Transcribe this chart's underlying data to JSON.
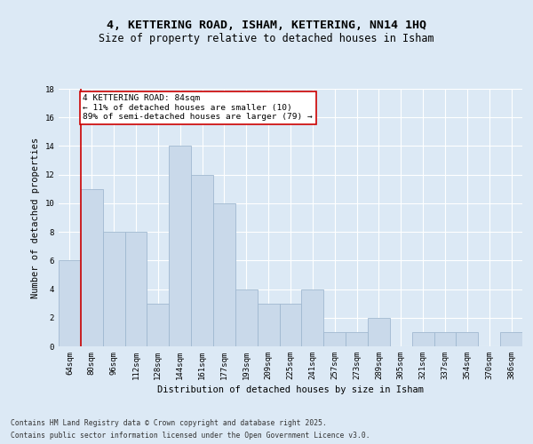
{
  "title_line1": "4, KETTERING ROAD, ISHAM, KETTERING, NN14 1HQ",
  "title_line2": "Size of property relative to detached houses in Isham",
  "xlabel": "Distribution of detached houses by size in Isham",
  "ylabel": "Number of detached properties",
  "categories": [
    "64sqm",
    "80sqm",
    "96sqm",
    "112sqm",
    "128sqm",
    "144sqm",
    "161sqm",
    "177sqm",
    "193sqm",
    "209sqm",
    "225sqm",
    "241sqm",
    "257sqm",
    "273sqm",
    "289sqm",
    "305sqm",
    "321sqm",
    "337sqm",
    "354sqm",
    "370sqm",
    "386sqm"
  ],
  "values": [
    6,
    11,
    8,
    8,
    3,
    14,
    12,
    10,
    4,
    3,
    3,
    4,
    1,
    1,
    2,
    0,
    1,
    1,
    1,
    0,
    1
  ],
  "bar_color": "#c9d9ea",
  "bar_edge_color": "#a0b8d0",
  "redline_x": 0.5,
  "annotation_text": "4 KETTERING ROAD: 84sqm\n← 11% of detached houses are smaller (10)\n89% of semi-detached houses are larger (79) →",
  "annotation_box_color": "#ffffff",
  "annotation_box_edgecolor": "#cc0000",
  "ylim": [
    0,
    18
  ],
  "yticks": [
    0,
    2,
    4,
    6,
    8,
    10,
    12,
    14,
    16,
    18
  ],
  "background_color": "#dce9f5",
  "plot_background_color": "#dce9f5",
  "grid_color": "#ffffff",
  "footer_line1": "Contains HM Land Registry data © Crown copyright and database right 2025.",
  "footer_line2": "Contains public sector information licensed under the Open Government Licence v3.0.",
  "title_fontsize": 9.5,
  "subtitle_fontsize": 8.5,
  "axis_label_fontsize": 7.5,
  "tick_fontsize": 6.5,
  "footer_fontsize": 5.8,
  "annotation_fontsize": 6.8
}
